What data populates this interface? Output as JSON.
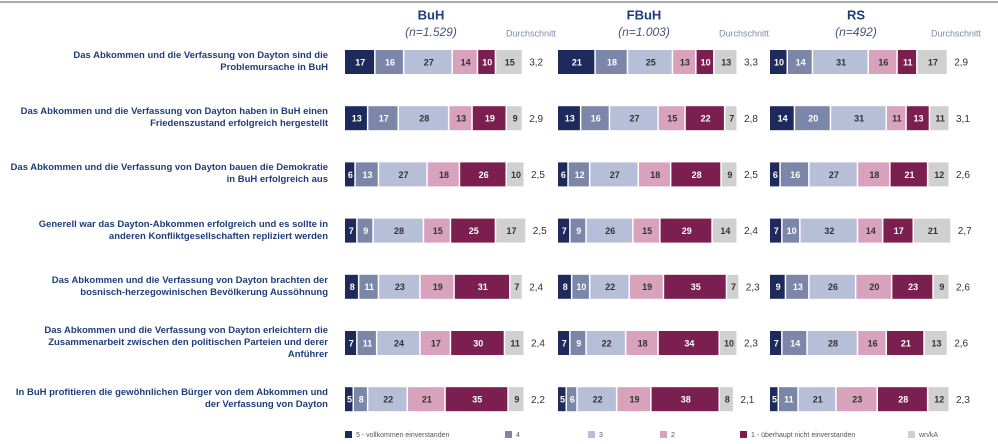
{
  "chart_data": {
    "type": "stacked_bar",
    "categories": [
      "Das Abkommen und die Verfassung von Dayton sind die Problemursache in BuH",
      "Das Abkommen und die Verfassung von Dayton haben in BuH einen Friedenszustand erfolgreich hergestellt",
      "Das Abkommen und die Verfassung von Dayton bauen die Demokratie in BuH erfolgreich aus",
      "Generell war das Dayton-Abkommen erfolgreich und es sollte in anderen Konfliktgesellschaften repliziert werden",
      "Das Abkommen und die Verfassung von Dayton brachten der bosnisch-herzegowinischen Bevölkerung Aussöhnung",
      "Das Abkommen und die Verfassung von Dayton erleichtern die Zusammenarbeit zwischen den politischen Parteien und derer Anführer",
      "In BuH profitieren die gewöhnlichen Bürger von dem Abkommen und der Verfassung von Dayton"
    ],
    "legend": [
      {
        "name": "5 - vollkommen einverstanden",
        "color": "#1f2a5c"
      },
      {
        "name": "4",
        "color": "#7b86a8"
      },
      {
        "name": "3",
        "color": "#b7bfd8"
      },
      {
        "name": "2",
        "color": "#d8a2bd"
      },
      {
        "name": "1 - überhaupt nicht einverstanden",
        "color": "#7a1f4f"
      },
      {
        "name": "wn/kA",
        "color": "#d0d0d0"
      }
    ],
    "average_label": "Durchschnitt",
    "xlim": [
      0,
      100
    ],
    "panels": [
      {
        "title": "BuH",
        "subtitle": "(n=1.529)",
        "series": [
          {
            "values": [
              17,
              13,
              6,
              7,
              8,
              7,
              5
            ]
          },
          {
            "values": [
              16,
              17,
              13,
              9,
              11,
              11,
              8
            ]
          },
          {
            "values": [
              27,
              28,
              27,
              28,
              23,
              24,
              22
            ]
          },
          {
            "values": [
              14,
              13,
              18,
              15,
              19,
              17,
              21
            ]
          },
          {
            "values": [
              10,
              19,
              26,
              25,
              31,
              30,
              35
            ]
          },
          {
            "values": [
              15,
              9,
              10,
              17,
              7,
              11,
              9
            ]
          }
        ],
        "averages": [
          3.2,
          2.9,
          2.5,
          2.5,
          2.4,
          2.4,
          2.2
        ],
        "averages_labels": [
          "3,2",
          "2,9",
          "2,5",
          "2,5",
          "2,4",
          "2,4",
          "2,2"
        ]
      },
      {
        "title": "FBuH",
        "subtitle": "(n=1.003)",
        "series": [
          {
            "values": [
              21,
              13,
              6,
              7,
              8,
              7,
              5
            ]
          },
          {
            "values": [
              18,
              16,
              12,
              9,
              10,
              9,
              6
            ]
          },
          {
            "values": [
              25,
              27,
              27,
              26,
              22,
              22,
              22
            ]
          },
          {
            "values": [
              13,
              15,
              18,
              15,
              19,
              18,
              19
            ]
          },
          {
            "values": [
              10,
              22,
              28,
              29,
              35,
              34,
              38
            ]
          },
          {
            "values": [
              13,
              7,
              9,
              14,
              7,
              10,
              8
            ]
          }
        ],
        "averages": [
          3.3,
          2.8,
          2.5,
          2.4,
          2.3,
          2.3,
          2.1
        ],
        "averages_labels": [
          "3,3",
          "2,8",
          "2,5",
          "2,4",
          "2,3",
          "2,3",
          "2,1"
        ]
      },
      {
        "title": "RS",
        "subtitle": "(n=492)",
        "series": [
          {
            "values": [
              10,
              14,
              6,
              7,
              9,
              7,
              5
            ]
          },
          {
            "values": [
              14,
              20,
              16,
              10,
              13,
              14,
              11
            ]
          },
          {
            "values": [
              31,
              31,
              27,
              32,
              26,
              28,
              21
            ]
          },
          {
            "values": [
              16,
              11,
              18,
              14,
              20,
              16,
              23
            ]
          },
          {
            "values": [
              11,
              13,
              21,
              17,
              23,
              21,
              28
            ]
          },
          {
            "values": [
              17,
              11,
              12,
              21,
              9,
              13,
              12
            ]
          }
        ],
        "averages": [
          2.9,
          3.1,
          2.6,
          2.7,
          2.6,
          2.6,
          2.3
        ],
        "averages_labels": [
          "2,9",
          "3,1",
          "2,6",
          "2,7",
          "2,6",
          "2,6",
          "2,3"
        ]
      }
    ]
  }
}
